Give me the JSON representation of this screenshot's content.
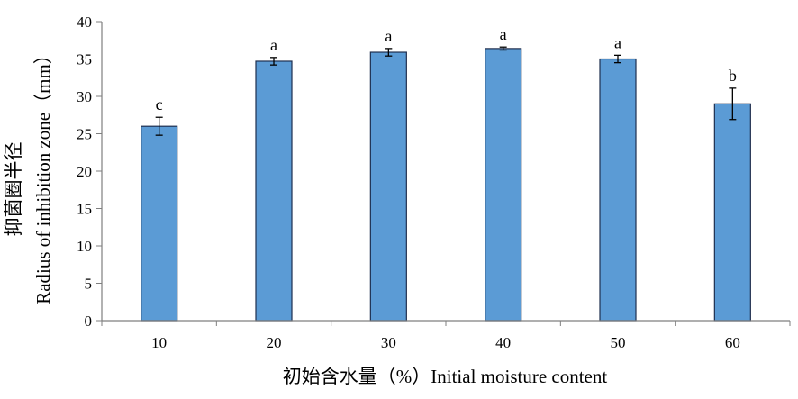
{
  "chart_data": {
    "type": "bar",
    "categories": [
      "10",
      "20",
      "30",
      "40",
      "50",
      "60"
    ],
    "values": [
      26.0,
      34.7,
      35.9,
      36.4,
      35.0,
      29.0
    ],
    "error": [
      1.2,
      0.5,
      0.5,
      0.2,
      0.5,
      2.1
    ],
    "significance": [
      "c",
      "a",
      "a",
      "a",
      "a",
      "b"
    ],
    "xlabel": "初始含水量（%）Initial moisture content",
    "ylabel_line1": "抑菌圈半径",
    "ylabel_line2": "Radius of inhibition zone（mm）",
    "ylim": [
      0,
      40
    ],
    "yticks": [
      "0",
      "5",
      "10",
      "15",
      "20",
      "25",
      "30",
      "35",
      "40"
    ],
    "grid": false,
    "bar_color": "#5B9BD5",
    "bar_edge_color": "#1F2F4F"
  }
}
